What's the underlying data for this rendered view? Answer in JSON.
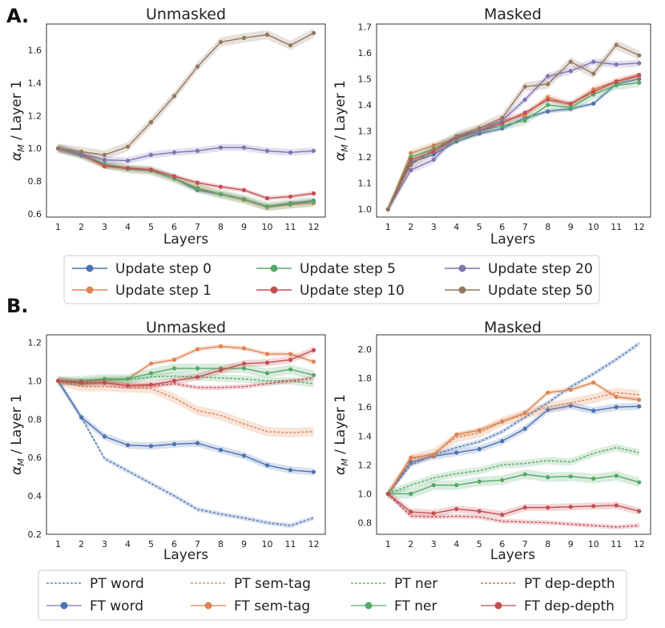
{
  "panel_labels": [
    "A.",
    "B."
  ],
  "legend_a": [
    {
      "label": "Update step 0",
      "color": "#4c72b0"
    },
    {
      "label": "Update step 1",
      "color": "#dd8452"
    },
    {
      "label": "Update step 5",
      "color": "#55a868"
    },
    {
      "label": "Update step 10",
      "color": "#c44e52"
    },
    {
      "label": "Update step 20",
      "color": "#8172b3"
    },
    {
      "label": "Update step 50",
      "color": "#937860"
    }
  ],
  "legend_b": [
    {
      "label": "PT word",
      "color": "#4c72b0",
      "style": "dashed"
    },
    {
      "label": "FT word",
      "color": "#8172b3",
      "style": "solid",
      "marker_color": "#4c72b0"
    },
    {
      "label": "PT sem-tag",
      "color": "#dd8452",
      "style": "dashed"
    },
    {
      "label": "FT sem-tag",
      "color": "#dd8452",
      "style": "solid"
    },
    {
      "label": "PT ner",
      "color": "#55a868",
      "style": "dashed"
    },
    {
      "label": "FT ner",
      "color": "#55a868",
      "style": "solid"
    },
    {
      "label": "PT dep-depth",
      "color": "#c44e52",
      "style": "dashed"
    },
    {
      "label": "FT dep-depth",
      "color": "#c44e52",
      "style": "solid"
    }
  ],
  "chart_data": [
    {
      "id": "A-unmasked",
      "type": "line",
      "title": "Unmasked",
      "xlabel": "Layers",
      "ylabel": "α_M / Layer 1",
      "ylabel_parts": [
        "α",
        "M",
        " / Layer 1"
      ],
      "x": [
        1,
        2,
        3,
        4,
        5,
        6,
        7,
        8,
        9,
        10,
        11,
        12
      ],
      "xlim": [
        0.5,
        12.5
      ],
      "ylim": [
        0.58,
        1.76
      ],
      "yticks": [
        0.6,
        0.8,
        1.0,
        1.2,
        1.4,
        1.6
      ],
      "series": [
        {
          "name": "Update step 0",
          "color": "#4c72b0",
          "values": [
            1.0,
            0.955,
            0.905,
            0.875,
            0.865,
            0.815,
            0.745,
            0.72,
            0.69,
            0.645,
            0.665,
            0.68
          ]
        },
        {
          "name": "Update step 1",
          "color": "#dd8452",
          "values": [
            1.0,
            0.96,
            0.895,
            0.875,
            0.865,
            0.815,
            0.76,
            0.72,
            0.685,
            0.64,
            0.655,
            0.665
          ]
        },
        {
          "name": "Update step 5",
          "color": "#55a868",
          "values": [
            1.0,
            0.96,
            0.905,
            0.875,
            0.865,
            0.815,
            0.755,
            0.72,
            0.69,
            0.645,
            0.66,
            0.675
          ]
        },
        {
          "name": "Update step 10",
          "color": "#c44e52",
          "values": [
            1.0,
            0.965,
            0.89,
            0.88,
            0.87,
            0.83,
            0.79,
            0.765,
            0.745,
            0.695,
            0.705,
            0.725
          ]
        },
        {
          "name": "Update step 20",
          "color": "#8172b3",
          "values": [
            1.0,
            0.965,
            0.93,
            0.925,
            0.96,
            0.975,
            0.985,
            1.005,
            1.005,
            0.985,
            0.975,
            0.985
          ]
        },
        {
          "name": "Update step 50",
          "color": "#937860",
          "values": [
            1.0,
            0.98,
            0.96,
            1.01,
            1.16,
            1.32,
            1.5,
            1.65,
            1.675,
            1.695,
            1.63,
            1.705
          ]
        }
      ]
    },
    {
      "id": "A-masked",
      "type": "line",
      "title": "Masked",
      "xlabel": "Layers",
      "ylabel": "α_M / Layer 1",
      "ylabel_parts": [
        "α",
        "M",
        " / Layer 1"
      ],
      "x": [
        1,
        2,
        3,
        4,
        5,
        6,
        7,
        8,
        9,
        10,
        11,
        12
      ],
      "xlim": [
        0.5,
        12.5
      ],
      "ylim": [
        0.97,
        1.71
      ],
      "yticks": [
        1.0,
        1.1,
        1.2,
        1.3,
        1.4,
        1.5,
        1.6,
        1.7
      ],
      "series": [
        {
          "name": "Update step 0",
          "color": "#4c72b0",
          "values": [
            1.0,
            1.18,
            1.21,
            1.26,
            1.29,
            1.31,
            1.35,
            1.375,
            1.385,
            1.405,
            1.48,
            1.5
          ]
        },
        {
          "name": "Update step 1",
          "color": "#dd8452",
          "values": [
            1.0,
            1.215,
            1.245,
            1.27,
            1.31,
            1.34,
            1.36,
            1.43,
            1.4,
            1.46,
            1.49,
            1.51
          ]
        },
        {
          "name": "Update step 5",
          "color": "#55a868",
          "values": [
            1.0,
            1.2,
            1.23,
            1.27,
            1.3,
            1.32,
            1.34,
            1.4,
            1.39,
            1.44,
            1.475,
            1.485
          ]
        },
        {
          "name": "Update step 10",
          "color": "#c44e52",
          "values": [
            1.0,
            1.19,
            1.22,
            1.275,
            1.3,
            1.33,
            1.37,
            1.42,
            1.405,
            1.45,
            1.49,
            1.515
          ]
        },
        {
          "name": "Update step 20",
          "color": "#8172b3",
          "values": [
            1.0,
            1.15,
            1.19,
            1.28,
            1.3,
            1.34,
            1.42,
            1.51,
            1.53,
            1.565,
            1.555,
            1.56
          ]
        },
        {
          "name": "Update step 50",
          "color": "#937860",
          "values": [
            1.0,
            1.17,
            1.23,
            1.28,
            1.31,
            1.35,
            1.47,
            1.48,
            1.565,
            1.52,
            1.63,
            1.59
          ]
        }
      ]
    },
    {
      "id": "B-unmasked",
      "type": "line",
      "title": "Unmasked",
      "xlabel": "Layers",
      "ylabel": "α_M / Layer 1",
      "ylabel_parts": [
        "α",
        "M",
        " / Layer 1"
      ],
      "x": [
        1,
        2,
        3,
        4,
        5,
        6,
        7,
        8,
        9,
        10,
        11,
        12
      ],
      "xlim": [
        0.5,
        12.5
      ],
      "ylim": [
        0.2,
        1.24
      ],
      "yticks": [
        0.2,
        0.4,
        0.6,
        0.8,
        1.0,
        1.2
      ],
      "series": [
        {
          "name": "PT word",
          "color": "#4c72b0",
          "style": "dashed",
          "values": [
            1.0,
            0.81,
            0.595,
            0.53,
            0.465,
            0.4,
            0.33,
            0.305,
            0.285,
            0.26,
            0.245,
            0.285
          ]
        },
        {
          "name": "FT word",
          "color": "#4c72b0",
          "style": "solid",
          "values": [
            1.0,
            0.81,
            0.71,
            0.665,
            0.66,
            0.67,
            0.675,
            0.64,
            0.61,
            0.56,
            0.535,
            0.525
          ]
        },
        {
          "name": "PT sem-tag",
          "color": "#dd8452",
          "style": "dashed",
          "values": [
            1.0,
            0.97,
            0.97,
            0.965,
            0.96,
            0.91,
            0.845,
            0.82,
            0.775,
            0.735,
            0.73,
            0.735
          ]
        },
        {
          "name": "FT sem-tag",
          "color": "#dd8452",
          "style": "solid",
          "values": [
            1.0,
            1.0,
            1.005,
            1.01,
            1.09,
            1.11,
            1.165,
            1.18,
            1.17,
            1.14,
            1.14,
            1.1
          ]
        },
        {
          "name": "PT ner",
          "color": "#55a868",
          "style": "dashed",
          "values": [
            1.0,
            0.995,
            1.005,
            1.005,
            1.02,
            1.025,
            1.02,
            1.015,
            1.01,
            1.0,
            1.0,
            0.985
          ]
        },
        {
          "name": "FT ner",
          "color": "#55a868",
          "style": "solid",
          "values": [
            1.0,
            1.0,
            1.01,
            1.01,
            1.04,
            1.065,
            1.065,
            1.065,
            1.065,
            1.04,
            1.06,
            1.03
          ]
        },
        {
          "name": "PT dep-depth",
          "color": "#c44e52",
          "style": "dashed",
          "values": [
            1.0,
            0.985,
            0.99,
            0.975,
            0.975,
            0.985,
            0.965,
            0.965,
            0.97,
            0.985,
            1.0,
            1.015
          ]
        },
        {
          "name": "FT dep-depth",
          "color": "#c44e52",
          "style": "solid",
          "values": [
            1.0,
            0.99,
            0.99,
            0.975,
            0.98,
            1.0,
            1.02,
            1.055,
            1.09,
            1.095,
            1.11,
            1.16
          ]
        }
      ]
    },
    {
      "id": "B-masked",
      "type": "line",
      "title": "Masked",
      "xlabel": "Layers",
      "ylabel": "α_M / Layer 1",
      "ylabel_parts": [
        "α",
        "M",
        " / Layer 1"
      ],
      "x": [
        1,
        2,
        3,
        4,
        5,
        6,
        7,
        8,
        9,
        10,
        11,
        12
      ],
      "xlim": [
        0.5,
        12.5
      ],
      "ylim": [
        0.72,
        2.1
      ],
      "yticks": [
        0.8,
        1.0,
        1.2,
        1.4,
        1.6,
        1.8,
        2.0
      ],
      "series": [
        {
          "name": "PT word",
          "color": "#4c72b0",
          "style": "dashed",
          "values": [
            1.0,
            1.2,
            1.27,
            1.32,
            1.36,
            1.43,
            1.53,
            1.63,
            1.74,
            1.83,
            1.93,
            2.04
          ]
        },
        {
          "name": "FT word",
          "color": "#4c72b0",
          "style": "solid",
          "values": [
            1.0,
            1.22,
            1.26,
            1.285,
            1.31,
            1.365,
            1.45,
            1.58,
            1.61,
            1.575,
            1.6,
            1.605
          ]
        },
        {
          "name": "PT sem-tag",
          "color": "#dd8452",
          "style": "dashed",
          "values": [
            1.0,
            1.24,
            1.28,
            1.39,
            1.42,
            1.5,
            1.55,
            1.6,
            1.63,
            1.66,
            1.7,
            1.685
          ]
        },
        {
          "name": "FT sem-tag",
          "color": "#dd8452",
          "style": "solid",
          "values": [
            1.0,
            1.25,
            1.27,
            1.41,
            1.44,
            1.5,
            1.56,
            1.7,
            1.72,
            1.77,
            1.67,
            1.65
          ]
        },
        {
          "name": "PT ner",
          "color": "#55a868",
          "style": "dashed",
          "values": [
            1.0,
            1.06,
            1.11,
            1.14,
            1.16,
            1.2,
            1.21,
            1.23,
            1.22,
            1.28,
            1.32,
            1.285
          ]
        },
        {
          "name": "FT ner",
          "color": "#55a868",
          "style": "solid",
          "values": [
            1.0,
            1.0,
            1.06,
            1.06,
            1.085,
            1.095,
            1.135,
            1.115,
            1.12,
            1.105,
            1.125,
            1.08
          ]
        },
        {
          "name": "PT dep-depth",
          "color": "#c44e52",
          "style": "dashed",
          "values": [
            1.0,
            0.845,
            0.84,
            0.845,
            0.84,
            0.81,
            0.805,
            0.8,
            0.79,
            0.78,
            0.77,
            0.78
          ]
        },
        {
          "name": "FT dep-depth",
          "color": "#c44e52",
          "style": "solid",
          "values": [
            1.0,
            0.875,
            0.865,
            0.895,
            0.88,
            0.855,
            0.905,
            0.905,
            0.91,
            0.915,
            0.92,
            0.88
          ]
        }
      ]
    }
  ]
}
